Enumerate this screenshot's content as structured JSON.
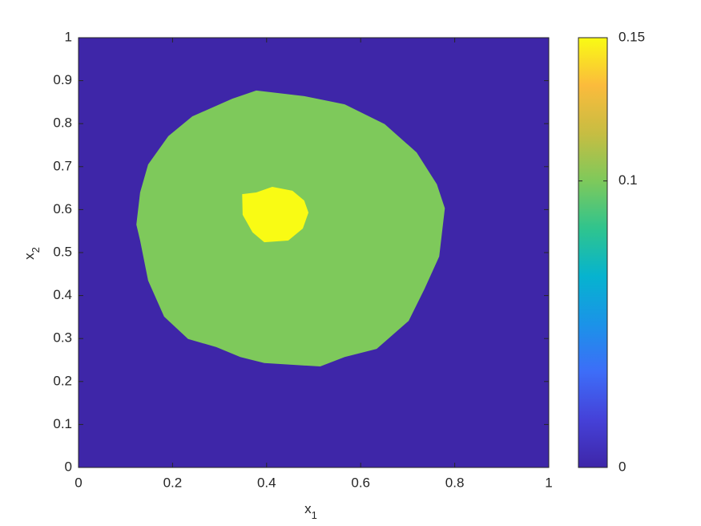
{
  "chart_data": {
    "type": "region",
    "xlabel": {
      "base": "x",
      "sub": "1"
    },
    "ylabel": {
      "base": "x",
      "sub": "2"
    },
    "xlim": [
      0,
      1
    ],
    "ylim": [
      0,
      1
    ],
    "xticks": [
      0,
      0.2,
      0.4,
      0.6,
      0.8,
      1
    ],
    "yticks": [
      0,
      0.1,
      0.2,
      0.3,
      0.4,
      0.5,
      0.6,
      0.7,
      0.8,
      0.9,
      1
    ],
    "clim": [
      0,
      0.15
    ],
    "cticks": [
      0,
      0.1,
      0.15
    ],
    "colormap": [
      "#3e26a8",
      "#4541d8",
      "#3d6df8",
      "#1b93e8",
      "#06b3cf",
      "#2fc48e",
      "#7ec95b",
      "#c7bd42",
      "#fbbb3c",
      "#f9fb14"
    ],
    "regions": [
      {
        "value": 0,
        "x": [
          0,
          1,
          1,
          0
        ],
        "y": [
          0,
          0,
          1,
          1
        ]
      },
      {
        "value": 0.1,
        "x": [
          0.378,
          0.48,
          0.566,
          0.651,
          0.719,
          0.762,
          0.779,
          0.767,
          0.736,
          0.702,
          0.634,
          0.566,
          0.514,
          0.395,
          0.344,
          0.293,
          0.233,
          0.182,
          0.148,
          0.131,
          0.123,
          0.131,
          0.148,
          0.191,
          0.242,
          0.327
        ],
        "y": [
          0.877,
          0.864,
          0.845,
          0.799,
          0.733,
          0.659,
          0.603,
          0.491,
          0.416,
          0.341,
          0.276,
          0.257,
          0.235,
          0.243,
          0.257,
          0.28,
          0.299,
          0.351,
          0.435,
          0.528,
          0.565,
          0.64,
          0.705,
          0.771,
          0.817,
          0.858
        ]
      },
      {
        "value": 0.15,
        "x": [
          0.348,
          0.378,
          0.412,
          0.455,
          0.48,
          0.489,
          0.477,
          0.446,
          0.395,
          0.37,
          0.349
        ],
        "y": [
          0.636,
          0.64,
          0.653,
          0.644,
          0.621,
          0.593,
          0.556,
          0.528,
          0.524,
          0.547,
          0.588
        ]
      }
    ]
  }
}
